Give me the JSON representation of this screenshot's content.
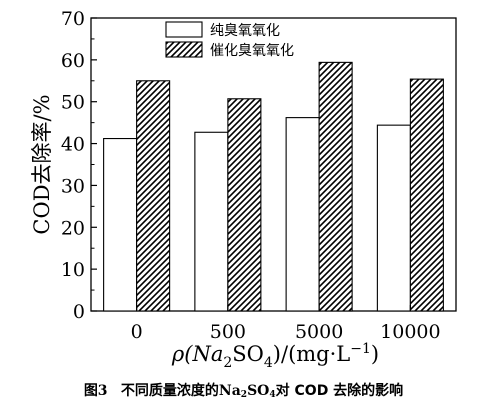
{
  "chart_data": {
    "type": "bar",
    "categories": [
      "0",
      "500",
      "5000",
      "10000"
    ],
    "series": [
      {
        "name": "纯臭氧氧化",
        "values": [
          41.2,
          42.7,
          46.2,
          44.4
        ],
        "fill": "plain"
      },
      {
        "name": "催化臭氧氧化",
        "values": [
          55.0,
          50.7,
          59.4,
          55.4
        ],
        "fill": "hatched"
      }
    ],
    "title": "",
    "xlabel": "ρ(Na₂SO₄)/(mg·L⁻¹)",
    "ylabel": "COD去除率/%",
    "ylim": [
      0,
      70
    ],
    "yticks": [
      0,
      10,
      20,
      30,
      40,
      50,
      60,
      70
    ],
    "grid": false,
    "legend": "top-left"
  },
  "caption": {
    "figure_number": "图3",
    "text_before": "不同质量浓度的",
    "formula_main": "Na",
    "formula_sub1": "2",
    "formula_mid": "SO",
    "formula_sub2": "4",
    "text_after": "对 COD 去除的影响"
  },
  "colors": {
    "bar_fill": "#ffffff",
    "stroke": "#000000",
    "hatch": "#000000"
  }
}
